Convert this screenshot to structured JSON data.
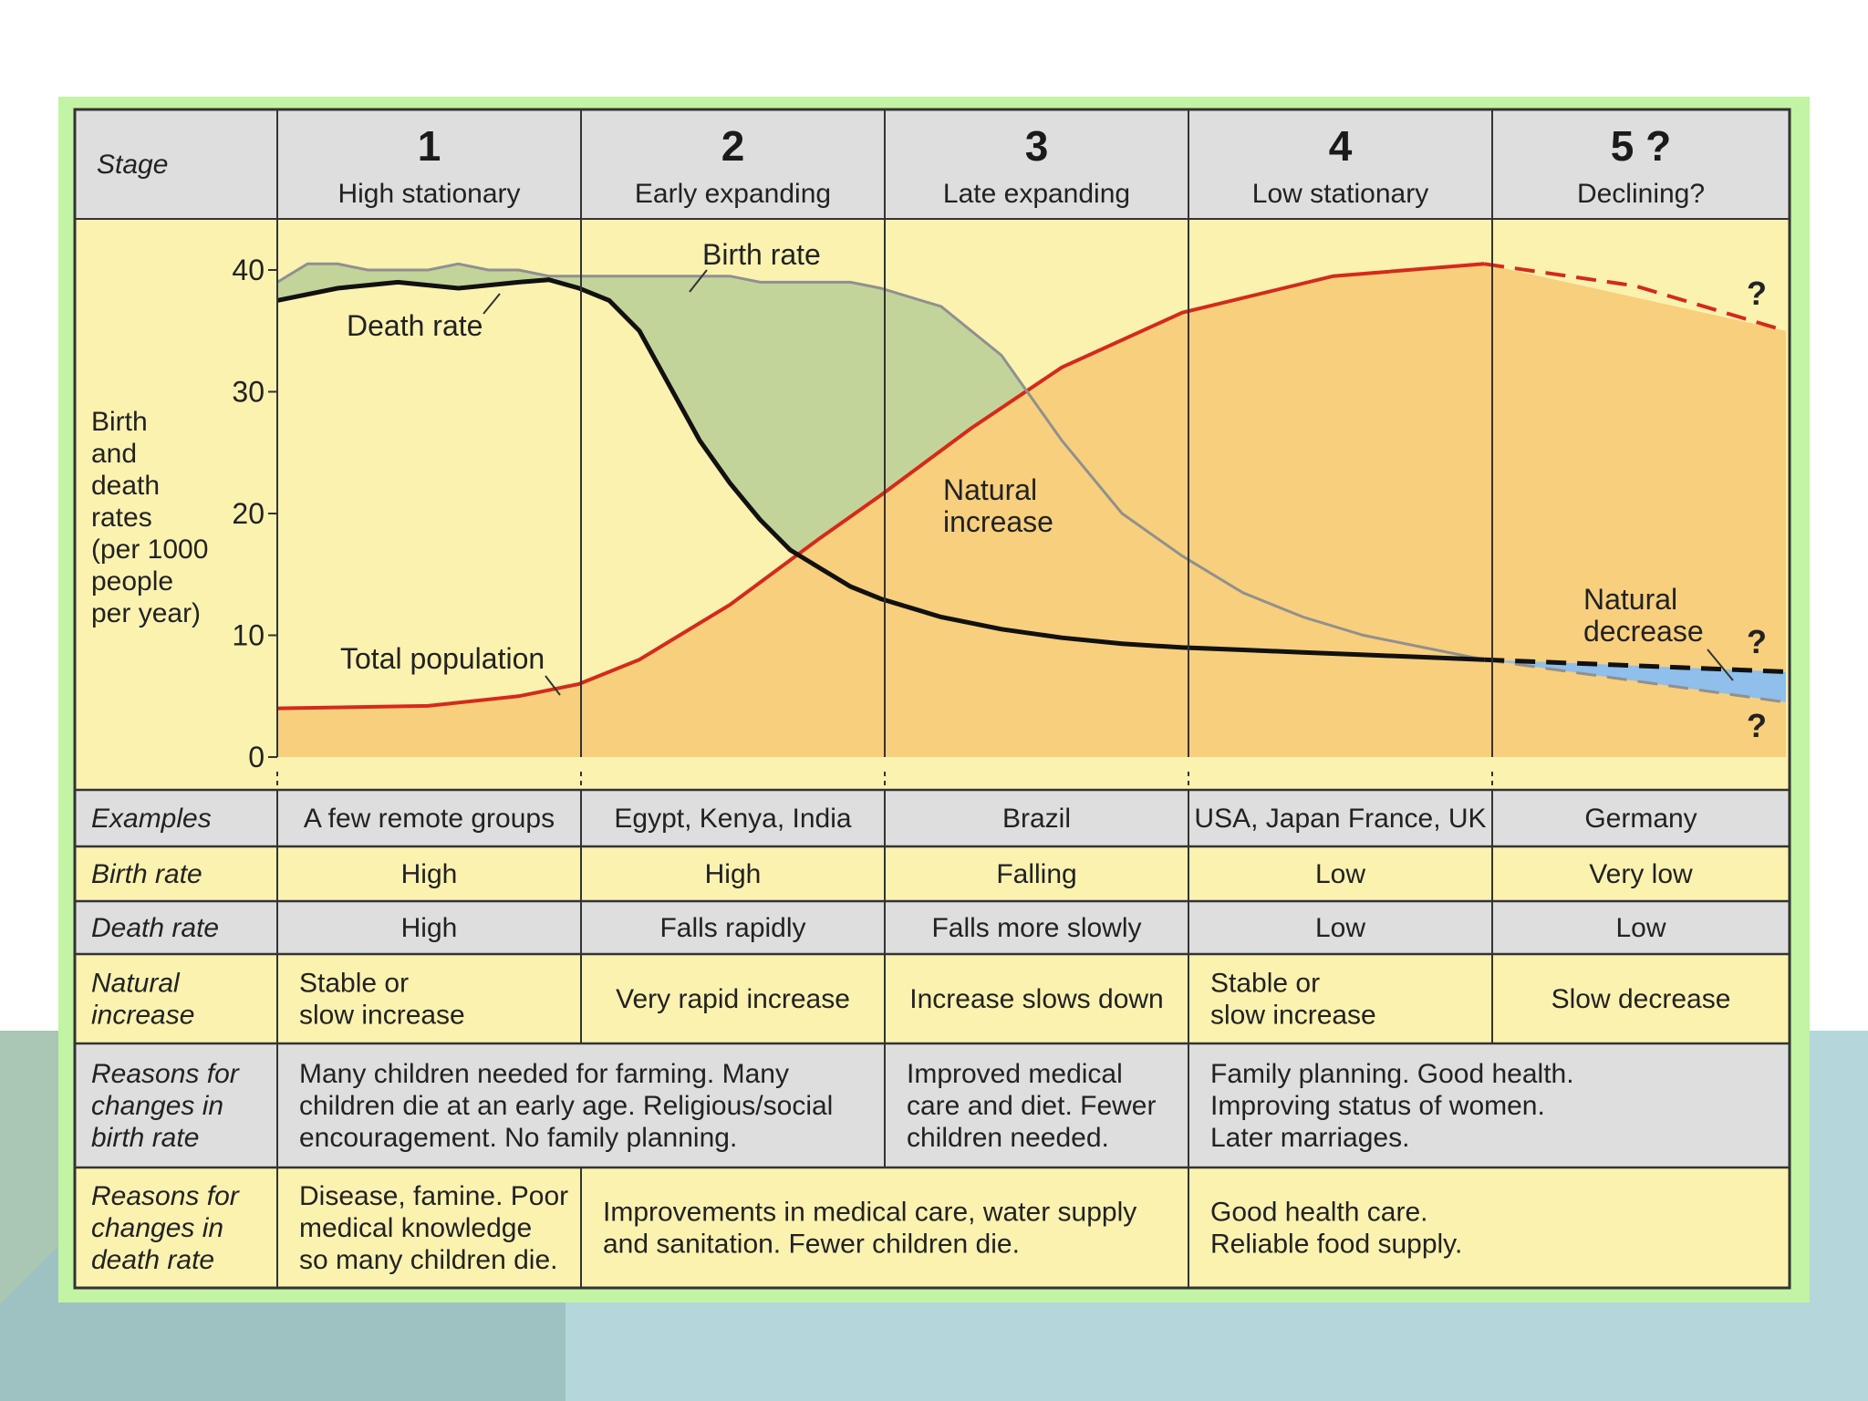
{
  "chart_data": {
    "type": "line",
    "ylabel": [
      "Birth",
      "and",
      "death",
      "rates",
      "(per 1000",
      "people",
      "per year)"
    ],
    "yticks": [
      "0",
      "10",
      "20",
      "30",
      "40"
    ],
    "ylim": [
      0,
      45
    ],
    "stage_label": "Stage",
    "stages": [
      {
        "number": "1",
        "name": "High stationary"
      },
      {
        "number": "2",
        "name": "Early expanding"
      },
      {
        "number": "3",
        "name": "Late expanding"
      },
      {
        "number": "4",
        "name": "Low stationary"
      },
      {
        "number": "5 ?",
        "name": "Declining?"
      }
    ],
    "series": [
      {
        "name": "Birth rate",
        "color": "#909090",
        "points": [
          [
            0.0,
            39
          ],
          [
            0.1,
            40.5
          ],
          [
            0.2,
            40.5
          ],
          [
            0.3,
            40
          ],
          [
            0.4,
            40
          ],
          [
            0.5,
            40
          ],
          [
            0.6,
            40.5
          ],
          [
            0.7,
            40
          ],
          [
            0.8,
            40
          ],
          [
            0.9,
            39.5
          ],
          [
            1.0,
            39.5
          ],
          [
            1.1,
            39.5
          ],
          [
            1.2,
            39.5
          ],
          [
            1.3,
            39.5
          ],
          [
            1.4,
            39.5
          ],
          [
            1.5,
            39.5
          ],
          [
            1.6,
            39
          ],
          [
            1.7,
            39
          ],
          [
            1.8,
            39
          ],
          [
            1.9,
            39
          ],
          [
            2.0,
            38.5
          ],
          [
            2.2,
            37
          ],
          [
            2.4,
            33
          ],
          [
            2.6,
            26
          ],
          [
            2.8,
            20
          ],
          [
            3.0,
            16.5
          ],
          [
            3.2,
            13.5
          ],
          [
            3.4,
            11.5
          ],
          [
            3.6,
            10
          ],
          [
            3.8,
            9
          ],
          [
            4.0,
            8
          ]
        ],
        "projection": {
          "from": 4.0,
          "to": 5.0,
          "values": [
            8,
            4.5
          ],
          "style": "dashed"
        }
      },
      {
        "name": "Death rate",
        "color": "#111111",
        "points": [
          [
            0.0,
            37.5
          ],
          [
            0.2,
            38.5
          ],
          [
            0.4,
            39
          ],
          [
            0.6,
            38.5
          ],
          [
            0.8,
            39
          ],
          [
            0.9,
            39.2
          ],
          [
            1.0,
            38.5
          ],
          [
            1.1,
            37.5
          ],
          [
            1.2,
            35
          ],
          [
            1.3,
            30.5
          ],
          [
            1.4,
            26
          ],
          [
            1.5,
            22.5
          ],
          [
            1.6,
            19.5
          ],
          [
            1.7,
            17
          ],
          [
            1.8,
            15.5
          ],
          [
            1.9,
            14
          ],
          [
            2.0,
            13
          ],
          [
            2.2,
            11.5
          ],
          [
            2.4,
            10.5
          ],
          [
            2.6,
            9.8
          ],
          [
            2.8,
            9.3
          ],
          [
            3.0,
            9
          ],
          [
            3.2,
            8.8
          ],
          [
            3.4,
            8.6
          ],
          [
            3.6,
            8.4
          ],
          [
            3.8,
            8.2
          ],
          [
            4.0,
            8
          ]
        ],
        "projection": {
          "from": 4.0,
          "to": 5.0,
          "values": [
            8,
            7
          ],
          "style": "dashed"
        }
      },
      {
        "name": "Total population",
        "color": "#d42a1c",
        "points": [
          [
            0.0,
            4
          ],
          [
            0.5,
            4.2
          ],
          [
            0.8,
            5
          ],
          [
            1.0,
            6
          ],
          [
            1.2,
            8
          ],
          [
            1.5,
            12.5
          ],
          [
            1.8,
            18
          ],
          [
            2.0,
            21.5
          ],
          [
            2.3,
            27
          ],
          [
            2.6,
            32
          ],
          [
            3.0,
            36.5
          ],
          [
            3.5,
            39.5
          ],
          [
            4.0,
            40.5
          ]
        ],
        "projection": {
          "from": 4.0,
          "to": 5.0,
          "values": [
            40.5,
            35
          ],
          "style": "dashed"
        }
      }
    ],
    "annotations": {
      "birth_rate": "Birth rate",
      "death_rate": "Death rate",
      "total_population": "Total population",
      "natural_increase": [
        "Natural",
        "increase"
      ],
      "natural_decrease": [
        "Natural",
        "decrease"
      ],
      "question": "?"
    },
    "colors": {
      "frame_border": "#c2f4a4",
      "plot_bg": "#fcf2b0",
      "header_bg": "#dedede",
      "natural_increase_fill": "#c3d49a",
      "population_fill": "#f8cf7c",
      "natural_decrease_fill": "#8fbfea",
      "grid_line": "#333333"
    }
  },
  "table": {
    "rows": [
      {
        "label": [
          "Examples"
        ],
        "cells": [
          {
            "lines": [
              "A few remote groups"
            ]
          },
          {
            "lines": [
              "Egypt, Kenya, India"
            ]
          },
          {
            "lines": [
              "Brazil"
            ]
          },
          {
            "lines": [
              "USA, Japan France, UK"
            ]
          },
          {
            "lines": [
              "Germany"
            ]
          }
        ]
      },
      {
        "label": [
          "Birth rate"
        ],
        "cells": [
          {
            "lines": [
              "High"
            ]
          },
          {
            "lines": [
              "High"
            ]
          },
          {
            "lines": [
              "Falling"
            ]
          },
          {
            "lines": [
              "Low"
            ]
          },
          {
            "lines": [
              "Very low"
            ]
          }
        ]
      },
      {
        "label": [
          "Death rate"
        ],
        "cells": [
          {
            "lines": [
              "High"
            ]
          },
          {
            "lines": [
              "Falls rapidly"
            ]
          },
          {
            "lines": [
              "Falls more slowly"
            ]
          },
          {
            "lines": [
              "Low"
            ]
          },
          {
            "lines": [
              "Low"
            ]
          }
        ]
      },
      {
        "label": [
          "Natural",
          "increase"
        ],
        "cells": [
          {
            "lines": [
              "Stable or",
              "slow increase"
            ]
          },
          {
            "lines": [
              "Very rapid increase"
            ]
          },
          {
            "lines": [
              "Increase slows down"
            ]
          },
          {
            "lines": [
              "Stable or",
              "slow increase"
            ]
          },
          {
            "lines": [
              "Slow decrease"
            ]
          }
        ]
      },
      {
        "label": [
          "Reasons for",
          "changes in",
          "birth rate"
        ],
        "cells": [
          {
            "span": 2,
            "lines": [
              "Many children needed for farming. Many",
              "children die at an early age. Religious/social",
              "encouragement. No family planning."
            ]
          },
          {
            "span": 1,
            "lines": [
              "Improved medical",
              "care and diet. Fewer",
              "children needed."
            ]
          },
          {
            "span": 2,
            "lines": [
              "Family planning. Good health.",
              "Improving status of women.",
              "Later marriages."
            ]
          }
        ]
      },
      {
        "label": [
          "Reasons for",
          "changes in",
          "death rate"
        ],
        "cells": [
          {
            "span": 1,
            "lines": [
              "Disease, famine. Poor",
              "medical knowledge",
              "so many children die."
            ]
          },
          {
            "span": 2,
            "lines": [
              "Improvements in medical care, water supply",
              "and sanitation. Fewer children die."
            ]
          },
          {
            "span": 2,
            "lines": [
              "Good health care.",
              "Reliable food supply."
            ]
          }
        ]
      }
    ]
  }
}
